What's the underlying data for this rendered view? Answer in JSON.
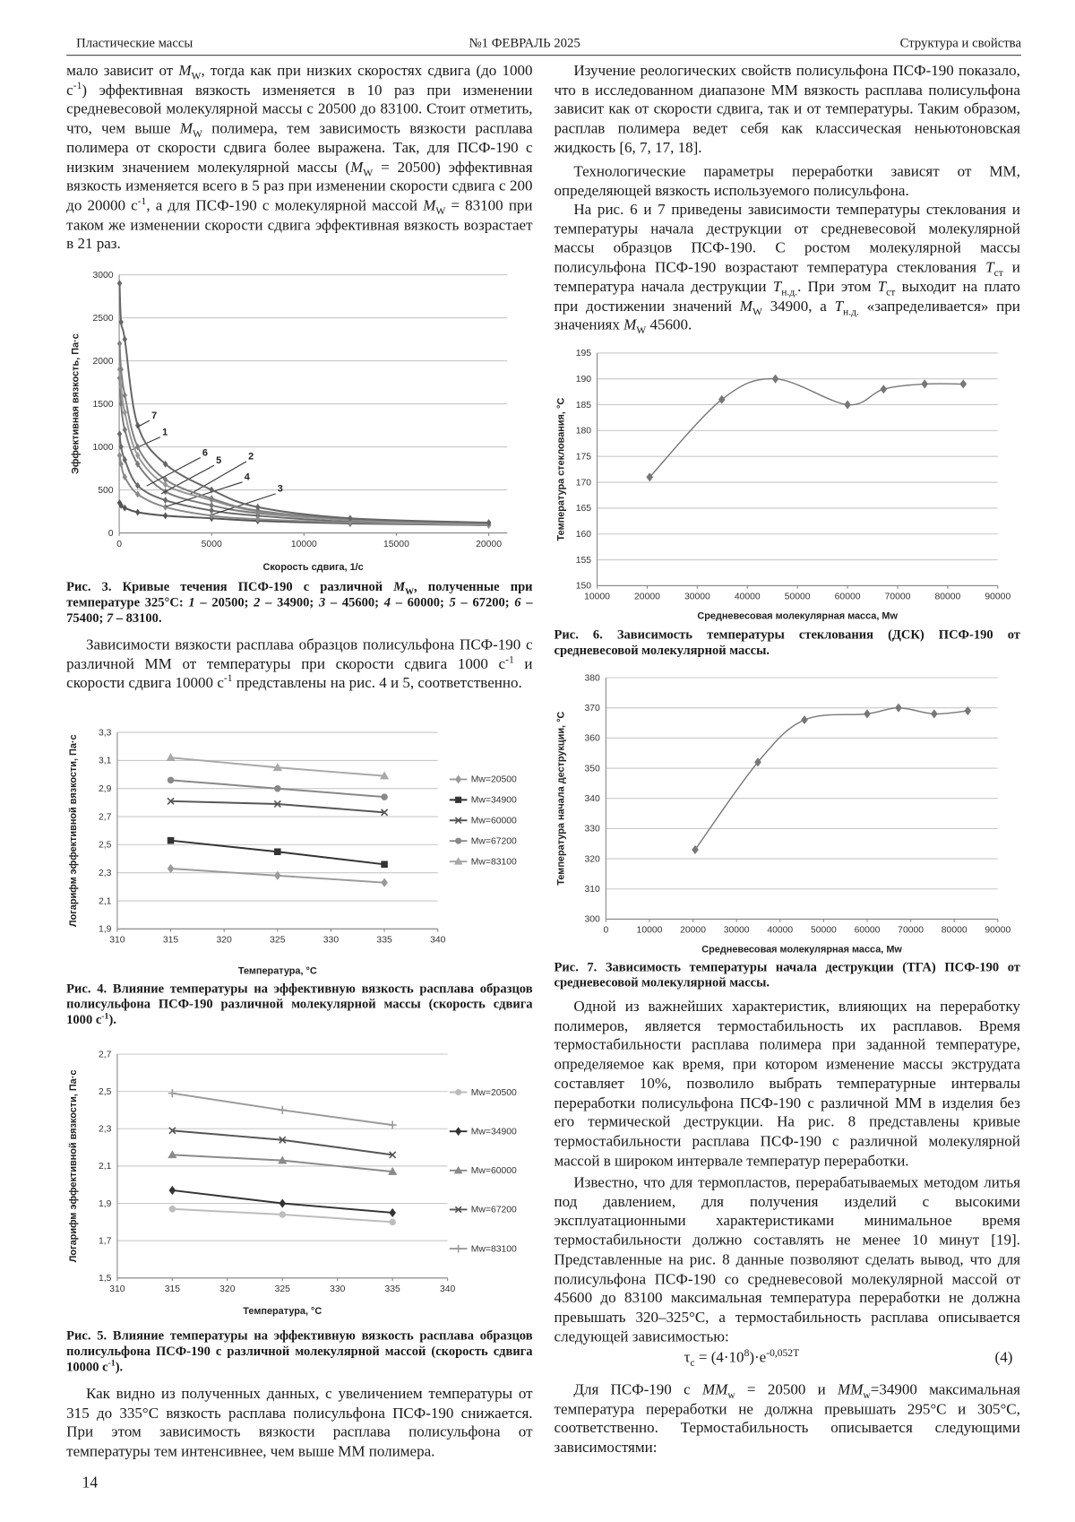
{
  "header": {
    "journal": "Пластические массы",
    "issue": "№1 ФЕВРАЛЬ 2025",
    "section": "Структура и свойства"
  },
  "paragraphs": [
    "мало зависит от <i>M</i><sub>W</sub>, тогда как при низких скоростях сдвига (до 1000 с<sup>-1</sup>) эффективная вязкость изменяется в 10 раз при изменении средневесовой молекулярной массы с 20500 до 83100. Стоит отметить, что, чем выше <i>M</i><sub>W</sub> полимера, тем зависимость вязкости расплава полимера от скорости сдвига более выражена. Так, для ПСФ-190 с низким значением молекулярной массы (<i>M</i><sub>W</sub> = 20500) эффективная вязкость изменяется всего в 5 раз при изменении скорости сдвига с 200 до 20000 с<sup>-1</sup>, а для ПСФ-190 с молекулярной массой <i>M</i><sub>W</sub> = 83100 при таком же изменении скорости сдвига эффективная вязкость возрастает в 21 раз.",
    "Зависимости вязкости расплава образцов полисульфона ПСФ-190 с различной ММ от температуры при скорости сдвига 1000 с<sup>-1</sup> и скорости сдвига 10000 с<sup>-1</sup> представлены на рис. 4 и 5, соответственно.",
    "Как видно из полученных данных, с увеличением температуры от 315 до 335°С вязкость расплава полисульфона ПСФ-190 снижается. При этом зависимость вязкости расплава полисульфона от температуры тем интенсивнее, чем выше ММ полимера.",
    "Изучение реологических свойств полисульфона ПСФ-190 показало, что в исследованном диапазоне ММ вязкость расплава полисульфона зависит как от скорости сдвига, так и от температуры. Таким образом, расплав полимера ведет себя как классическая неньютоновская жидкость [6, 7, 17, 18].",
    "Технологические параметры переработки зависят от ММ, определяющей вязкость используемого полисульфона.",
    "На рис. 6 и 7 приведены зависимости температуры стеклования и температуры начала деструкции от средневесовой молекулярной массы образцов ПСФ-190. С ростом молекулярной массы полисульфона ПСФ-190 возрастают температура стеклования <i>T</i><sub>ст</sub> и температура начала деструкции <i>T</i><sub>н.д.</sub>. При этом <i>T</i><sub>ст</sub> выходит на плато при достижении значений <i>M</i><sub>W</sub> 34900, а <i>T</i><sub>н.д.</sub> «запределивается» при значениях <i>M</i><sub>W</sub> 45600.",
    "Одной из важнейших характеристик, влияющих на переработку полимеров, является термостабильность их расплавов. Время термостабильности расплава полимера при заданной температуре, определяемое как время, при котором изменение массы экструдата составляет 10%, позволило выбрать температурные интервалы переработки полисульфона ПСФ-190 с различной ММ в изделия без его термической деструкции. На рис. 8 представлены кривые термостабильности расплава ПСФ-190 с различной молекулярной массой в широком интервале температур переработки.",
    "Известно, что для термопластов, перерабатываемых методом литья под давлением, для получения изделий с высокими эксплуатационными характеристиками минимальное время термостабильности должно составлять не менее 10 минут [19]. Представленные на рис. 8 данные позволяют сделать вывод, что для полисульфона ПСФ-190 со средневесовой молекулярной массой от 45600 до 83100 максимальная температура переработки не должна превышать 320–325°С, а термостабильность расплава описывается следующей зависимостью:",
    "Для ПСФ-190 с <i>MM</i><sub>w</sub> = 20500 и <i>MM</i><sub>w</sub>=34900 максимальная температура переработки не должна превышать 295°С и 305°С, соответственно. Термостабильность описывается следующими зависимостями:"
  ],
  "formula": {
    "expression": "τ<sub>c</sub> = (4·10<sup>8</sup>)·e<sup>-0,052T</sup>",
    "number": "(4)"
  },
  "page_number": "14",
  "chart_data": [
    {
      "type": "line",
      "smooth": true,
      "grid": true,
      "caption": "Рис. 3. Кривые течения ПСФ-190 с различной <i>M</i><sub>W</sub>, полученные при температуре 325°С: <i>1</i> – 20500; <i>2</i> – 34900; <i>3</i> – 45600; <i>4</i> – 60000; <i>5</i> – 67200; <i>6</i> – 75400; <i>7</i> – 83100.",
      "x_label": "Скорость сдвига, 1/с",
      "y_label": "Эффективная вязкость, Па·с",
      "x": [
        20,
        100,
        300,
        1000,
        2500,
        5000,
        7500,
        12500,
        20000
      ],
      "xlim": [
        0,
        21000
      ],
      "xticks": [
        0,
        5000,
        10000,
        15000,
        20000
      ],
      "ylim": [
        0,
        3000
      ],
      "yticks": [
        0,
        500,
        1000,
        1500,
        2000,
        2500,
        3000
      ],
      "series": [
        {
          "name": "1",
          "color": "#6a6a6a",
          "marker": "diamond",
          "values": [
            1150,
            1000,
            850,
            550,
            380,
            260,
            200,
            130,
            90
          ]
        },
        {
          "name": "2",
          "color": "#7a7a7a",
          "marker": "diamond",
          "values": [
            1800,
            1500,
            1200,
            800,
            480,
            320,
            230,
            150,
            100
          ]
        },
        {
          "name": "3",
          "color": "#555555",
          "marker": "diamond",
          "values": [
            350,
            320,
            290,
            240,
            200,
            170,
            140,
            110,
            90
          ]
        },
        {
          "name": "4",
          "color": "#8a8a8a",
          "marker": "diamond",
          "values": [
            900,
            800,
            650,
            450,
            300,
            200,
            160,
            120,
            90
          ]
        },
        {
          "name": "5",
          "color": "#999999",
          "marker": "diamond",
          "values": [
            1900,
            1700,
            1400,
            900,
            560,
            380,
            250,
            150,
            100
          ]
        },
        {
          "name": "6",
          "color": "#808080",
          "marker": "diamond",
          "values": [
            2200,
            1900,
            1600,
            1000,
            620,
            400,
            260,
            160,
            110
          ]
        },
        {
          "name": "7",
          "color": "#666666",
          "marker": "diamond",
          "values": [
            2900,
            2450,
            2250,
            1250,
            800,
            500,
            300,
            170,
            120
          ]
        }
      ]
    },
    {
      "type": "line",
      "grid": true,
      "legend": "right",
      "caption": "Рис. 4. Влияние температуры на эффективную вязкость расплава образцов полисульфона ПСФ-190 различной молекулярной массы (скорость сдвига 1000 с<sup>-1</sup>).",
      "x_label": "Температура, °С",
      "y_label": "Логарифм эффективной вязкости, Па·с",
      "x": [
        315,
        325,
        335
      ],
      "xlim": [
        310,
        340
      ],
      "xticks": [
        310,
        315,
        320,
        325,
        330,
        335,
        340
      ],
      "ylim": [
        1.9,
        3.3
      ],
      "yticks": [
        {
          "value": 1.9,
          "label": "1,9"
        },
        {
          "value": 2.1,
          "label": "2,1"
        },
        {
          "value": 2.3,
          "label": "2,3"
        },
        {
          "value": 2.5,
          "label": "2,5"
        },
        {
          "value": 2.7,
          "label": "2,7"
        },
        {
          "value": 2.9,
          "label": "2,9"
        },
        {
          "value": 3.1,
          "label": "3,1"
        },
        {
          "value": 3.3,
          "label": "3,3"
        }
      ],
      "series": [
        {
          "name": "Mw=20500",
          "color": "#9a9a9a",
          "marker": "diamond",
          "values": [
            2.33,
            2.28,
            2.23
          ]
        },
        {
          "name": "Mw=34900",
          "color": "#333333",
          "marker": "square",
          "values": [
            2.53,
            2.45,
            2.36
          ]
        },
        {
          "name": "Mw=60000",
          "color": "#555555",
          "marker": "x",
          "values": [
            2.81,
            2.79,
            2.73
          ]
        },
        {
          "name": "Mw=67200",
          "color": "#888888",
          "marker": "circle",
          "values": [
            2.96,
            2.9,
            2.84
          ]
        },
        {
          "name": "Mw=83100",
          "color": "#a8a8a8",
          "marker": "triangle",
          "values": [
            3.12,
            3.05,
            2.99
          ]
        }
      ]
    },
    {
      "type": "line",
      "grid": true,
      "legend": "right",
      "caption": "Рис. 5. Влияние температуры на эффективную вязкость расплава образцов полисульфона ПСФ-190 с различной молекулярной массой (скорость сдвига 10000 с<sup>-1</sup>).",
      "x_label": "Температура, °С",
      "y_label": "Логарифм эффективной вязкости, Па·с",
      "x": [
        315,
        325,
        335
      ],
      "xlim": [
        310,
        340
      ],
      "xticks": [
        310,
        315,
        320,
        325,
        330,
        335,
        340
      ],
      "ylim": [
        1.5,
        2.7
      ],
      "yticks": [
        {
          "value": 1.5,
          "label": "1,5"
        },
        {
          "value": 1.7,
          "label": "1,7"
        },
        {
          "value": 1.9,
          "label": "1,9"
        },
        {
          "value": 2.1,
          "label": "2,1"
        },
        {
          "value": 2.3,
          "label": "2,3"
        },
        {
          "value": 2.5,
          "label": "2,5"
        },
        {
          "value": 2.7,
          "label": "2,7"
        }
      ],
      "series": [
        {
          "name": "Mw=20500",
          "color": "#bdbdbd",
          "marker": "circle",
          "values": [
            1.87,
            1.84,
            1.8
          ]
        },
        {
          "name": "Mw=34900",
          "color": "#333333",
          "marker": "diamond",
          "values": [
            1.97,
            1.9,
            1.85
          ]
        },
        {
          "name": "Mw=60000",
          "color": "#8a8a8a",
          "marker": "triangle",
          "values": [
            2.16,
            2.13,
            2.07
          ]
        },
        {
          "name": "Mw=67200",
          "color": "#555555",
          "marker": "x",
          "values": [
            2.29,
            2.24,
            2.16
          ]
        },
        {
          "name": "Mw=83100",
          "color": "#9a9a9a",
          "marker": "plus",
          "values": [
            2.49,
            2.4,
            2.32
          ]
        }
      ]
    },
    {
      "type": "scatter",
      "smooth": true,
      "grid": true,
      "color": "#777777",
      "marker": "diamond",
      "caption": "Рис. 6. Зависимость температуры стеклования (ДСК) ПСФ-190 от средневесовой молекулярной массы.",
      "x_label": "Средневесовая молекулярная масса, Mw",
      "y_label": "Температура стеклования, °С",
      "x": [
        20500,
        34900,
        45600,
        60000,
        67200,
        75400,
        83100
      ],
      "values": [
        171,
        186,
        190,
        185,
        188,
        189,
        189
      ],
      "xlim": [
        10000,
        90000
      ],
      "xticks": [
        10000,
        20000,
        30000,
        40000,
        50000,
        60000,
        70000,
        80000,
        90000
      ],
      "ylim": [
        150,
        195
      ],
      "yticks": [
        150,
        155,
        160,
        165,
        170,
        175,
        180,
        185,
        190,
        195
      ]
    },
    {
      "type": "scatter",
      "smooth": true,
      "grid": true,
      "color": "#777777",
      "marker": "diamond",
      "caption": "Рис. 7. Зависимость температуры начала деструкции (ТГА) ПСФ-190 от средневесовой молекулярной массы.",
      "x_label": "Средневесовая молекулярная масса, Mw",
      "y_label": "Температура начала деструкции, °С",
      "x": [
        20500,
        34900,
        45600,
        60000,
        67200,
        75400,
        83100
      ],
      "values": [
        323,
        352,
        366,
        368,
        370,
        368,
        369
      ],
      "xlim": [
        0,
        90000
      ],
      "xticks": [
        0,
        10000,
        20000,
        30000,
        40000,
        50000,
        60000,
        70000,
        80000,
        90000
      ],
      "ylim": [
        300,
        380
      ],
      "yticks": [
        300,
        310,
        320,
        330,
        340,
        350,
        360,
        370,
        380
      ]
    }
  ]
}
